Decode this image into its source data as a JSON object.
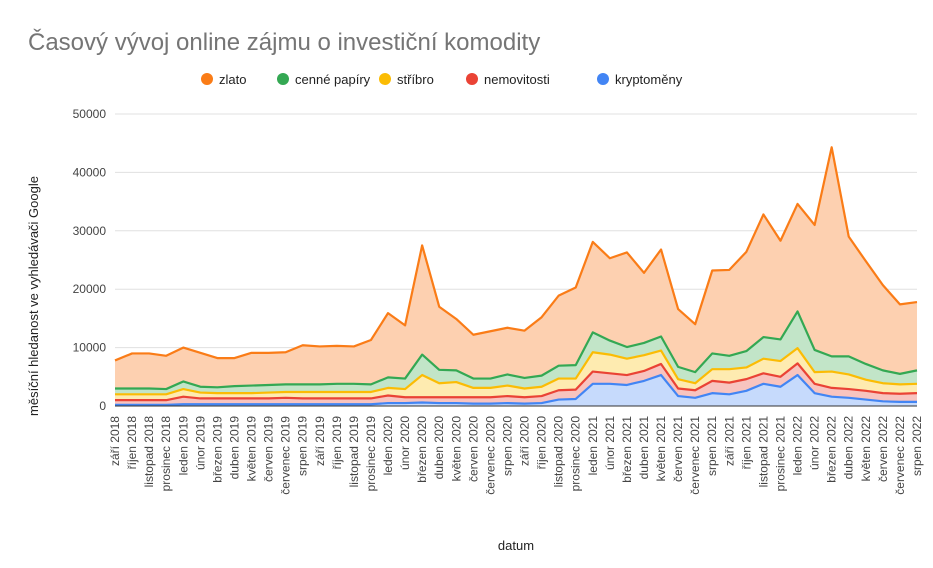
{
  "chart_data": {
    "type": "area",
    "title": "Časový vývoj online zájmu o investiční komodity",
    "xlabel": "datum",
    "ylabel": "měsíční hledanost ve vyhledávači Google",
    "ylim": [
      0,
      50000
    ],
    "yticks": [
      "0",
      "10000",
      "20000",
      "30000",
      "40000",
      "50000"
    ],
    "grid": true,
    "stacked": true,
    "legend_position": "top",
    "categories": [
      "září 2018",
      "říjen 2018",
      "listopad 2018",
      "prosinec 2018",
      "leden 2019",
      "únor 2019",
      "březen 2019",
      "duben 2019",
      "květen 2019",
      "červen 2019",
      "červenec 2019",
      "srpen 2019",
      "září 2019",
      "říjen 2019",
      "listopad 2019",
      "prosinec 2019",
      "leden 2020",
      "únor 2020",
      "březen 2020",
      "duben 2020",
      "květen 2020",
      "červen 2020",
      "červenec 2020",
      "srpen 2020",
      "září 2020",
      "říjen 2020",
      "listopad 2020",
      "prosinec 2020",
      "leden 2021",
      "únor 2021",
      "březen 2021",
      "duben 2021",
      "květen 2021",
      "červen 2021",
      "červenec 2021",
      "srpen 2021",
      "září 2021",
      "říjen 2021",
      "listopad 2021",
      "prosinec 2021",
      "leden 2022",
      "únor 2022",
      "březen 2022",
      "duben 2022",
      "květen 2022",
      "červen 2022",
      "červenec 2022",
      "srpen 2022"
    ],
    "series": [
      {
        "name": "zlato",
        "color": "#fa7c17",
        "fill": "#fdd0b0",
        "values": [
          4800,
          6000,
          6000,
          5700,
          5800,
          5800,
          5000,
          4800,
          5600,
          5500,
          5500,
          6700,
          6500,
          6500,
          6400,
          7600,
          11000,
          9100,
          18700,
          10800,
          8800,
          7500,
          8100,
          8000,
          8100,
          10000,
          12000,
          13300,
          15500,
          14100,
          16200,
          12000,
          14900,
          9900,
          8200,
          14200,
          14700,
          17000,
          21000,
          16900,
          18400,
          21400,
          35800,
          20500,
          17600,
          14600,
          11900,
          11700
        ]
      },
      {
        "name": "cenné papíry",
        "color": "#34a853",
        "fill": "#c2e5c8",
        "values": [
          1000,
          1000,
          1000,
          900,
          1300,
          1000,
          1000,
          1200,
          1300,
          1300,
          1300,
          1300,
          1300,
          1400,
          1400,
          1300,
          1800,
          1800,
          3500,
          2300,
          2000,
          1600,
          1600,
          1900,
          1800,
          1900,
          2200,
          2300,
          3400,
          2400,
          2000,
          2100,
          2400,
          2100,
          1900,
          2700,
          2300,
          2800,
          3700,
          3700,
          6300,
          3800,
          2600,
          3100,
          2700,
          2200,
          1800,
          2300
        ]
      },
      {
        "name": "stříbro",
        "color": "#fbbc04",
        "fill": "#feebb0",
        "values": [
          1000,
          1000,
          1000,
          1000,
          1300,
          1000,
          900,
          900,
          900,
          1000,
          1000,
          1100,
          1100,
          1100,
          1100,
          1100,
          1300,
          1400,
          3800,
          2400,
          2600,
          1600,
          1600,
          1800,
          1500,
          1600,
          2000,
          1900,
          3300,
          3200,
          2800,
          2700,
          2300,
          1600,
          1200,
          2000,
          2300,
          2000,
          2500,
          2700,
          2600,
          2000,
          2800,
          2500,
          1900,
          1700,
          1600,
          1600
        ]
      },
      {
        "name": "nemovitosti",
        "color": "#ea4335",
        "fill": "#f8c4bf",
        "values": [
          800,
          800,
          800,
          800,
          1300,
          1000,
          1000,
          1000,
          1000,
          1000,
          1100,
          1000,
          1000,
          1000,
          1000,
          1000,
          1300,
          1000,
          900,
          1000,
          1000,
          1100,
          1100,
          1200,
          1100,
          1200,
          1600,
          1600,
          2100,
          1800,
          1700,
          1700,
          1900,
          1300,
          1300,
          2100,
          2000,
          2000,
          1800,
          1700,
          2000,
          1600,
          1500,
          1500,
          1500,
          1400,
          1400,
          1500
        ]
      },
      {
        "name": "kryptoměny",
        "color": "#4285f4",
        "fill": "#c6dafc",
        "values": [
          200,
          200,
          200,
          200,
          300,
          300,
          300,
          300,
          300,
          300,
          300,
          300,
          300,
          300,
          300,
          300,
          500,
          500,
          600,
          500,
          500,
          400,
          400,
          500,
          400,
          500,
          1100,
          1200,
          3800,
          3800,
          3600,
          4300,
          5300,
          1700,
          1400,
          2200,
          2000,
          2600,
          3800,
          3300,
          5300,
          2200,
          1600,
          1400,
          1100,
          800,
          700,
          700
        ]
      }
    ]
  }
}
